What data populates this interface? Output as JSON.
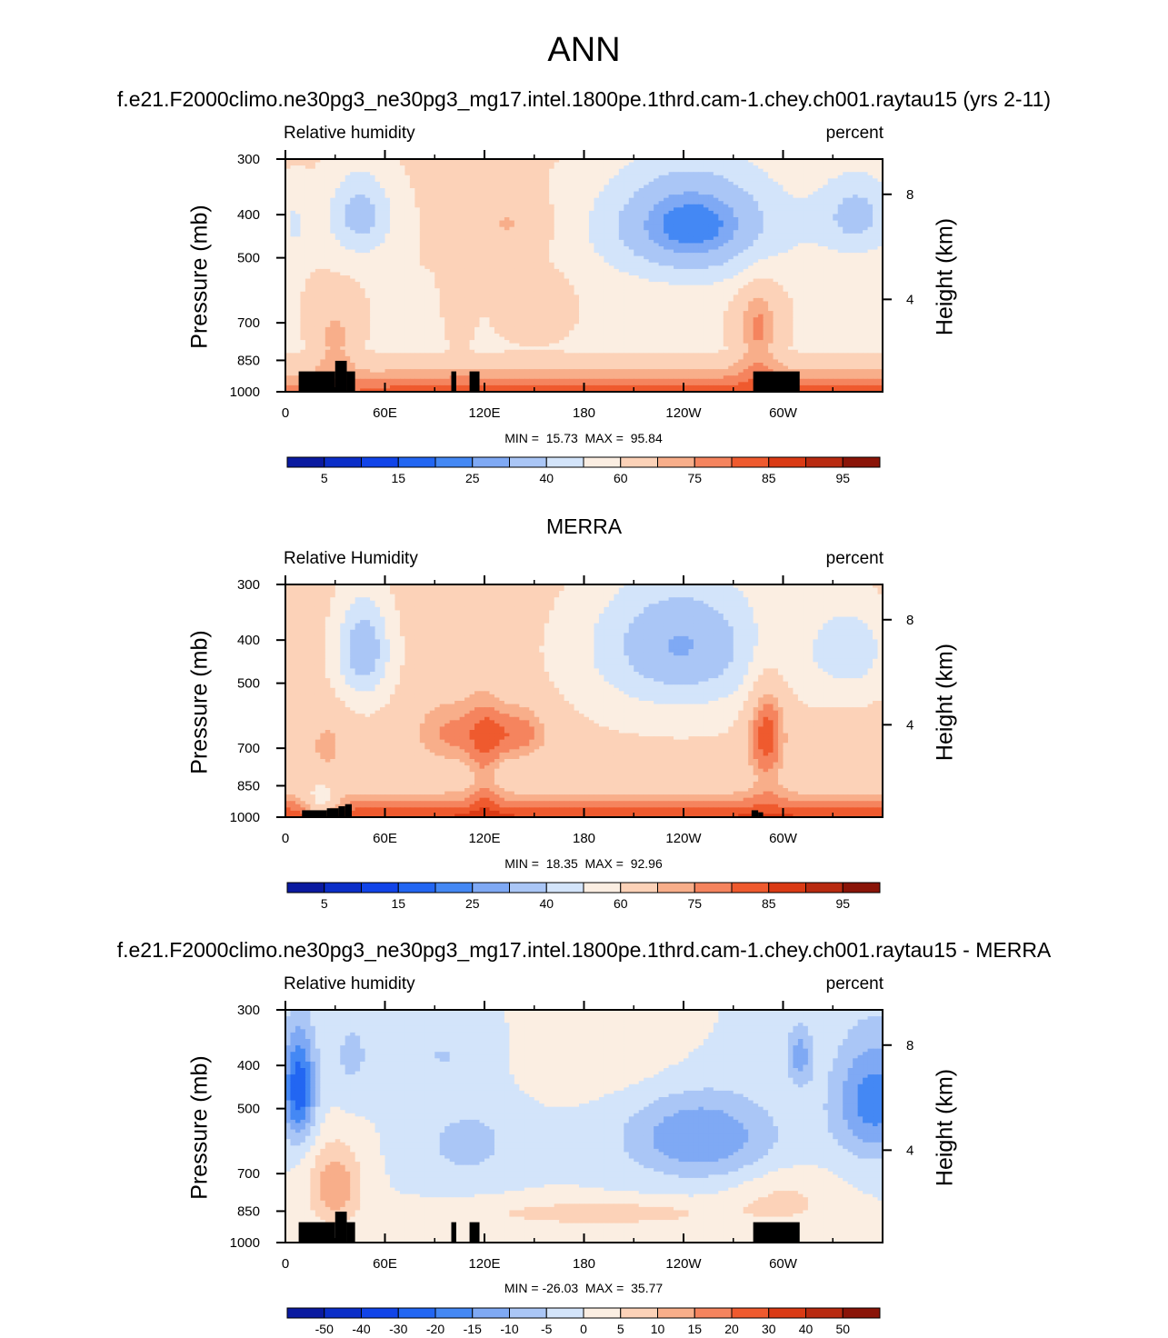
{
  "title": "ANN",
  "colors": {
    "abs": [
      "#0a1aa0",
      "#0b2ec8",
      "#1144e8",
      "#2266f2",
      "#4488f4",
      "#7fa9f4",
      "#aac6f6",
      "#d3e4fa",
      "#fbeee2",
      "#fcd2b8",
      "#f8ae8a",
      "#f5845e",
      "#ef5a2e",
      "#da3a14",
      "#b82a10",
      "#8a1408"
    ],
    "diff": [
      "#0a1aa0",
      "#0b2ec8",
      "#1144e8",
      "#2266f2",
      "#4488f4",
      "#7fa9f4",
      "#aac6f6",
      "#d3e4fa",
      "#fbeee2",
      "#fcd2b8",
      "#f8ae8a",
      "#f5845e",
      "#ef5a2e",
      "#da3a14",
      "#b82a10",
      "#8a1408"
    ],
    "land": "#000000"
  },
  "chart_data": [
    {
      "type": "heatmap",
      "title": "f.e21.F2000climo.ne30pg3_ne30pg3_mg17.intel.1800pe.1thrd.cam-1.chey.ch001.raytau15 (yrs 2-11)",
      "left_label": "Relative humidity",
      "right_label": "percent",
      "ylabel": "Pressure (mb)",
      "ylabel_right": "Height (km)",
      "x_ticks": [
        "0",
        "60E",
        "120E",
        "180",
        "120W",
        "60W"
      ],
      "y_ticks": [
        "300",
        "400",
        "500",
        "700",
        "850",
        "1000"
      ],
      "y_right_ticks": [
        "8",
        "4"
      ],
      "ylim": [
        1000,
        300
      ],
      "xlim": [
        0,
        360
      ],
      "min": "15.73",
      "max": "95.84",
      "minmax_text": "MIN =  15.73  MAX =  95.84",
      "colorbar_labels": [
        "5",
        "15",
        "25",
        "40",
        "60",
        "75",
        "85",
        "95"
      ]
    },
    {
      "type": "heatmap",
      "title": "MERRA",
      "left_label": "Relative Humidity",
      "right_label": "percent",
      "ylabel": "Pressure (mb)",
      "ylabel_right": "Height (km)",
      "x_ticks": [
        "0",
        "60E",
        "120E",
        "180",
        "120W",
        "60W"
      ],
      "y_ticks": [
        "300",
        "400",
        "500",
        "700",
        "850",
        "1000"
      ],
      "y_right_ticks": [
        "8",
        "4"
      ],
      "ylim": [
        1000,
        300
      ],
      "xlim": [
        0,
        360
      ],
      "min": "18.35",
      "max": "92.96",
      "minmax_text": "MIN =  18.35  MAX =  92.96",
      "colorbar_labels": [
        "5",
        "15",
        "25",
        "40",
        "60",
        "75",
        "85",
        "95"
      ]
    },
    {
      "type": "heatmap",
      "title": "f.e21.F2000climo.ne30pg3_ne30pg3_mg17.intel.1800pe.1thrd.cam-1.chey.ch001.raytau15 - MERRA",
      "left_label": "Relative humidity",
      "right_label": "percent",
      "ylabel": "Pressure (mb)",
      "ylabel_right": "Height (km)",
      "x_ticks": [
        "0",
        "60E",
        "120E",
        "180",
        "120W",
        "60W"
      ],
      "y_ticks": [
        "300",
        "400",
        "500",
        "700",
        "850",
        "1000"
      ],
      "y_right_ticks": [
        "8",
        "4"
      ],
      "ylim": [
        1000,
        300
      ],
      "xlim": [
        0,
        360
      ],
      "min": "-26.03",
      "max": "35.77",
      "minmax_text": "MIN = -26.03  MAX =  35.77",
      "colorbar_labels": [
        "-50",
        "-40",
        "-30",
        "-20",
        "-15",
        "-10",
        "-5",
        "0",
        "5",
        "10",
        "15",
        "20",
        "30",
        "40",
        "50"
      ]
    }
  ]
}
